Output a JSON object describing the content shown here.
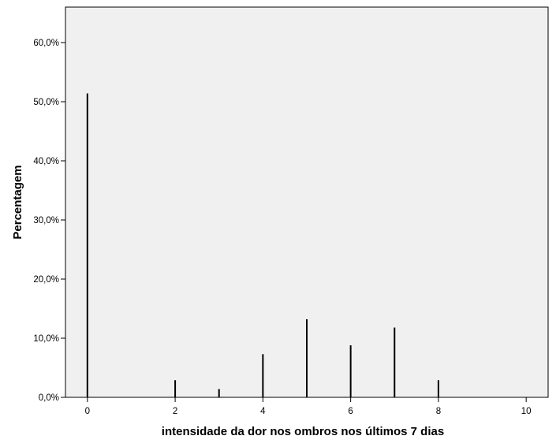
{
  "chart_data": {
    "type": "bar",
    "title": "",
    "xlabel": "intensidade da dor nos ombros nos últimos 7 dias",
    "ylabel": "Percentagem",
    "x": [
      0,
      2,
      3,
      4,
      5,
      6,
      7,
      8
    ],
    "values": [
      51.4,
      2.9,
      1.4,
      7.3,
      13.2,
      8.8,
      11.8,
      2.9
    ],
    "xlim": [
      -0.5,
      10.5
    ],
    "ylim": [
      0,
      66
    ],
    "x_ticks": [
      0,
      2,
      4,
      6,
      8,
      10
    ],
    "x_tick_labels": [
      "0",
      "2",
      "4",
      "6",
      "8",
      "10"
    ],
    "y_ticks": [
      0,
      10,
      20,
      30,
      40,
      50,
      60
    ],
    "y_tick_labels": [
      "0,0%",
      "10,0%",
      "20,0%",
      "30,0%",
      "40,0%",
      "50,0%",
      "60,0%"
    ],
    "grid": false,
    "legend": "none",
    "colors": {
      "plot_background": "#f0f0f0",
      "bar": "#000000",
      "axis": "#000000"
    }
  }
}
